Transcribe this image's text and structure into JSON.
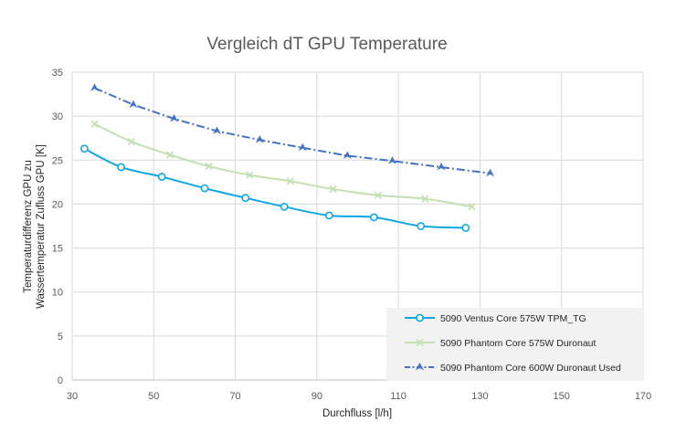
{
  "chart_data": {
    "type": "scatter",
    "title": "Vergleich dT GPU Temperature",
    "xlabel": "Durchfluss [l/h]",
    "ylabel_lines": [
      "Temperaturdifferenz GPU zu",
      "Wassertemperatur Zufluss GPU  [K]"
    ],
    "xlim": [
      30,
      170
    ],
    "ylim": [
      0,
      35
    ],
    "xticks": [
      30,
      50,
      70,
      90,
      110,
      130,
      150,
      170
    ],
    "yticks": [
      0,
      5,
      10,
      15,
      20,
      25,
      30,
      35
    ],
    "grid": true,
    "legend_position": "bottom-right",
    "series": [
      {
        "name": "5090 Ventus Core 575W TPM_TG",
        "color": "#0fa7e2",
        "marker": "circle",
        "line": "solid",
        "x": [
          33,
          42,
          52,
          62.5,
          72.5,
          82,
          93,
          104,
          115.5,
          126.5
        ],
        "y": [
          26.3,
          24.2,
          23.1,
          21.8,
          20.7,
          19.7,
          18.7,
          18.5,
          17.5,
          17.3
        ]
      },
      {
        "name": "5090 Phantom Core 575W Duronaut",
        "color": "#c5e0b4",
        "marker": "x",
        "line": "solid",
        "x": [
          35.5,
          44.5,
          54,
          63.5,
          73.5,
          83.5,
          94,
          105,
          116.5,
          128
        ],
        "y": [
          29.1,
          27.1,
          25.6,
          24.3,
          23.3,
          22.6,
          21.7,
          21.0,
          20.6,
          19.7
        ]
      },
      {
        "name": "5090 Phantom Core 600W Duronaut Used",
        "color": "#4472c4",
        "marker": "triangle",
        "line": "dashdot",
        "x": [
          35.5,
          45,
          55,
          65.5,
          76,
          86.5,
          97.5,
          108.5,
          120.5,
          132.5
        ],
        "y": [
          33.2,
          31.3,
          29.7,
          28.3,
          27.3,
          26.4,
          25.5,
          24.9,
          24.2,
          23.5
        ]
      }
    ]
  }
}
